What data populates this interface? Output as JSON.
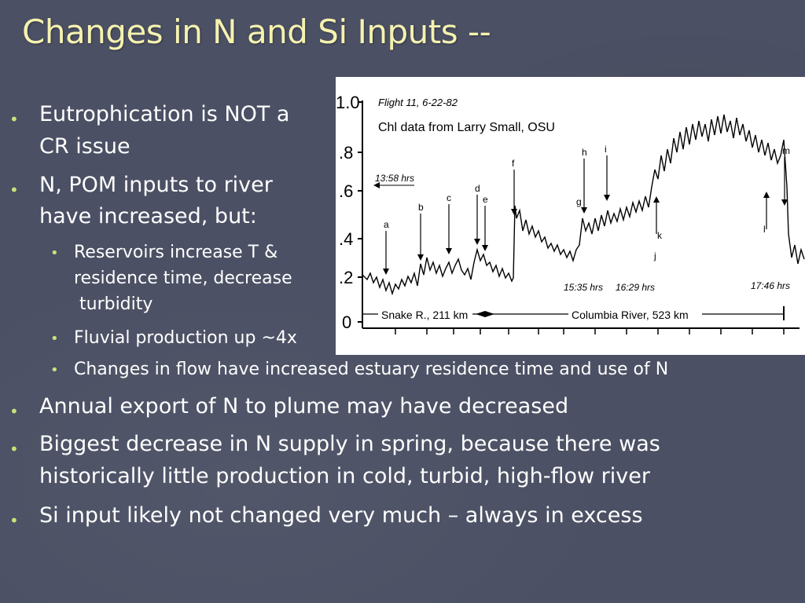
{
  "slide": {
    "title": "Changes in N and Si Inputs --",
    "bullets": [
      {
        "lines": [
          "Eutrophication is NOT a",
          "CR issue"
        ]
      },
      {
        "lines": [
          "N, POM inputs to river",
          "have increased, but:"
        ]
      },
      {
        "lines": [
          "Reservoirs increase T &",
          "residence time, decrease",
          " turbidity"
        ]
      },
      {
        "lines": [
          "Fluvial production up ~4x"
        ]
      },
      {
        "lines": [
          "Changes in flow have increased estuary residence time and use of N"
        ]
      },
      {
        "lines": [
          "Annual export of N to plume may have decreased"
        ]
      },
      {
        "lines": [
          "Biggest decrease in N supply in spring, because there was",
          "historically little production in cold, turbid, high-flow river"
        ]
      },
      {
        "lines": [
          "Si input likely not changed very much – always in excess"
        ]
      }
    ],
    "bullet_glyph": "•",
    "colors": {
      "background": "#4b5064",
      "title": "#f5f2b0",
      "text": "#ffffff",
      "bullet": "#c9e27a"
    }
  },
  "figure": {
    "credit": "Chl data from Larry Small, OSU",
    "flight_label": "Flight 11, 6-22-82",
    "y_ticks": [
      "1.0",
      ".8",
      ".6",
      ".4",
      ".2",
      "0"
    ],
    "time_labels": [
      "13:58 hrs",
      "15:35 hrs",
      "16:29 hrs",
      "17:46 hrs"
    ],
    "segment_labels": [
      "Snake R., 211 km",
      "Columbia River, 523 km"
    ],
    "markers": [
      "a",
      "b",
      "c",
      "d",
      "e",
      "f",
      "g",
      "h",
      "i",
      "j",
      "k",
      "l",
      "m"
    ]
  }
}
